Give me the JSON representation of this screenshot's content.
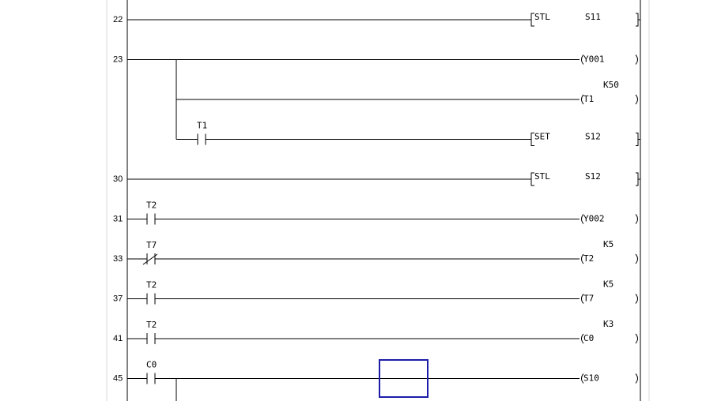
{
  "colors": {
    "cursor": "#1c1ca8",
    "wire": "#000000",
    "margin_line": "#d8d8d8"
  },
  "rungs": [
    {
      "step": "22",
      "contacts": [],
      "output": {
        "kind": "instruction",
        "op": "STL",
        "operand": "S11"
      }
    },
    {
      "step": "23",
      "contacts": [],
      "output": {
        "kind": "coil",
        "operand": "Y001"
      },
      "branches": [
        {
          "contacts": [],
          "output": {
            "kind": "coil",
            "operand": "T1",
            "param": "K50"
          }
        },
        {
          "contacts": [
            {
              "type": "NO",
              "label": "T1"
            }
          ],
          "output": {
            "kind": "instruction",
            "op": "SET",
            "operand": "S12"
          }
        }
      ]
    },
    {
      "step": "30",
      "contacts": [],
      "output": {
        "kind": "instruction",
        "op": "STL",
        "operand": "S12"
      }
    },
    {
      "step": "31",
      "contacts": [
        {
          "type": "NO",
          "label": "T2"
        }
      ],
      "output": {
        "kind": "coil",
        "operand": "Y002"
      }
    },
    {
      "step": "33",
      "contacts": [
        {
          "type": "NC",
          "label": "T7"
        }
      ],
      "output": {
        "kind": "coil",
        "operand": "T2",
        "param": "K5"
      }
    },
    {
      "step": "37",
      "contacts": [
        {
          "type": "NO",
          "label": "T2"
        }
      ],
      "output": {
        "kind": "coil",
        "operand": "T7",
        "param": "K5"
      }
    },
    {
      "step": "41",
      "contacts": [
        {
          "type": "NO",
          "label": "T2"
        }
      ],
      "output": {
        "kind": "coil",
        "operand": "C0",
        "param": "K3"
      }
    },
    {
      "step": "45",
      "contacts": [
        {
          "type": "NO",
          "label": "C0"
        }
      ],
      "output": {
        "kind": "coil",
        "operand": "S10"
      },
      "continues": true
    }
  ]
}
